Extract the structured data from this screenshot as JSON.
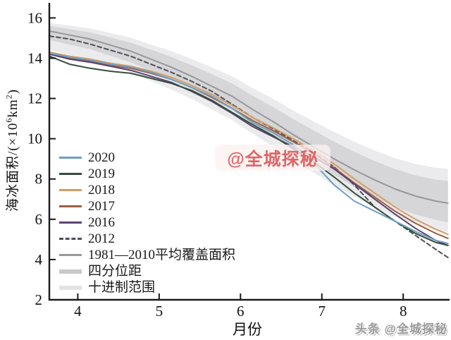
{
  "figure": {
    "xlabel": "月份",
    "ylabel_pre": "海冰面积/(×10",
    "ylabel_sup1": "6",
    "ylabel_unit": "km",
    "ylabel_sup2": "2",
    "ylabel_post": ")"
  },
  "watermarks": {
    "center": "@全城探秘",
    "bottom_right": "头条 @全城探秘"
  },
  "legend": {
    "items": [
      {
        "label": "2020",
        "color": "#6d9ec4",
        "style": "solid"
      },
      {
        "label": "2019",
        "color": "#344e3c",
        "style": "solid"
      },
      {
        "label": "2018",
        "color": "#d49d64",
        "style": "solid"
      },
      {
        "label": "2017",
        "color": "#9c5f44",
        "style": "solid"
      },
      {
        "label": "2016",
        "color": "#5b4370",
        "style": "solid"
      },
      {
        "label": "2012",
        "color": "#4f4f58",
        "style": "dashed"
      },
      {
        "label": "1981—2010平均覆盖面积",
        "color": "#98989b",
        "style": "solid"
      },
      {
        "label": "四分位距",
        "color": "#c7c7ca",
        "style": "band"
      },
      {
        "label": "十进制范围",
        "color": "#e3e3e6",
        "style": "band"
      }
    ]
  },
  "chart_data": {
    "type": "line",
    "title": "",
    "xlabel": "月份",
    "ylabel": "海冰面积/(×10^6 km^2)",
    "xlim": [
      3.65,
      8.57
    ],
    "ylim": [
      2,
      16.75
    ],
    "xticks": [
      4,
      5,
      6,
      7,
      8
    ],
    "yticks": [
      2,
      4,
      6,
      8,
      10,
      12,
      14,
      16
    ],
    "grid": false,
    "legend_position": "lower-left",
    "x": [
      3.65,
      3.9,
      4.15,
      4.4,
      4.65,
      4.9,
      5.15,
      5.4,
      5.65,
      5.9,
      6.15,
      6.4,
      6.65,
      6.9,
      7.15,
      7.4,
      7.65,
      7.9,
      8.15,
      8.4,
      8.55
    ],
    "bands": [
      {
        "name": "十进制范围",
        "color": "#ebebed",
        "upper": [
          15.75,
          15.62,
          15.48,
          15.25,
          15.02,
          14.68,
          14.35,
          13.96,
          13.53,
          13.1,
          12.51,
          11.98,
          11.4,
          10.86,
          10.33,
          9.85,
          9.41,
          9.03,
          8.74,
          8.56,
          8.5
        ],
        "lower": [
          14.4,
          14.17,
          13.95,
          13.62,
          13.3,
          12.87,
          12.45,
          11.97,
          11.45,
          10.92,
          10.25,
          9.62,
          8.94,
          8.32,
          7.69,
          7.12,
          6.59,
          6.12,
          5.74,
          5.47,
          5.35
        ]
      },
      {
        "name": "四分位距",
        "color": "#d6d6d8",
        "upper": [
          15.6,
          15.44,
          15.29,
          15.03,
          14.77,
          14.42,
          14.06,
          13.65,
          13.2,
          12.74,
          12.13,
          11.58,
          10.97,
          10.41,
          9.86,
          9.35,
          8.89,
          8.49,
          8.18,
          7.97,
          7.9
        ],
        "lower": [
          14.9,
          14.67,
          14.45,
          14.12,
          13.8,
          13.37,
          12.95,
          12.47,
          11.95,
          11.42,
          10.75,
          10.12,
          9.44,
          8.82,
          8.19,
          7.62,
          7.09,
          6.62,
          6.24,
          5.97,
          5.85
        ]
      }
    ],
    "series": [
      {
        "name": "1981—2010平均覆盖面积",
        "color": "#98989b",
        "dash": "",
        "width": 2,
        "values": [
          15.35,
          15.15,
          14.95,
          14.65,
          14.35,
          13.95,
          13.55,
          13.1,
          12.6,
          12.1,
          11.45,
          10.85,
          10.2,
          9.6,
          9.0,
          8.45,
          7.95,
          7.5,
          7.15,
          6.9,
          6.8
        ]
      },
      {
        "name": "2012",
        "color": "#4f4f58",
        "dash": "6,4",
        "width": 2,
        "values": [
          15.1,
          14.95,
          14.7,
          14.4,
          14.1,
          13.7,
          13.3,
          12.85,
          12.35,
          11.7,
          11.05,
          10.5,
          9.9,
          9.3,
          8.6,
          7.7,
          6.6,
          5.9,
          5.2,
          4.5,
          4.1
        ]
      },
      {
        "name": "2018",
        "color": "#d49d64",
        "dash": "",
        "width": 2,
        "values": [
          14.3,
          14.1,
          13.95,
          13.75,
          13.6,
          13.35,
          13.05,
          12.65,
          12.2,
          11.65,
          11.05,
          10.55,
          10.0,
          9.4,
          8.75,
          8.0,
          7.3,
          6.6,
          6.0,
          5.5,
          5.25
        ]
      },
      {
        "name": "2017",
        "color": "#9c5f44",
        "dash": "",
        "width": 2,
        "values": [
          14.2,
          14.0,
          13.85,
          13.65,
          13.5,
          13.25,
          12.95,
          12.55,
          12.05,
          11.5,
          10.9,
          10.4,
          9.85,
          9.25,
          8.55,
          7.8,
          7.1,
          6.4,
          5.8,
          5.3,
          5.05
        ]
      },
      {
        "name": "2016",
        "color": "#5b4370",
        "dash": "",
        "width": 2,
        "values": [
          14.2,
          13.95,
          13.8,
          13.6,
          13.4,
          13.1,
          12.8,
          12.35,
          11.85,
          11.25,
          10.6,
          10.1,
          9.6,
          9.1,
          8.5,
          7.75,
          7.0,
          6.25,
          5.55,
          4.95,
          4.7
        ]
      },
      {
        "name": "2019",
        "color": "#344e3c",
        "dash": "",
        "width": 2,
        "values": [
          14.1,
          13.7,
          13.5,
          13.35,
          13.25,
          13.0,
          12.75,
          12.4,
          11.9,
          11.3,
          10.7,
          10.15,
          9.5,
          8.85,
          8.1,
          7.3,
          6.6,
          5.9,
          5.3,
          4.85,
          4.7
        ]
      },
      {
        "name": "2020",
        "color": "#6d9ec4",
        "dash": "",
        "width": 2,
        "values": [
          14.25,
          14.05,
          13.9,
          13.7,
          13.55,
          13.3,
          12.95,
          12.55,
          12.1,
          11.5,
          10.8,
          10.3,
          9.7,
          8.8,
          7.7,
          6.9,
          6.4,
          5.9,
          5.4,
          4.95,
          4.8
        ]
      }
    ]
  }
}
